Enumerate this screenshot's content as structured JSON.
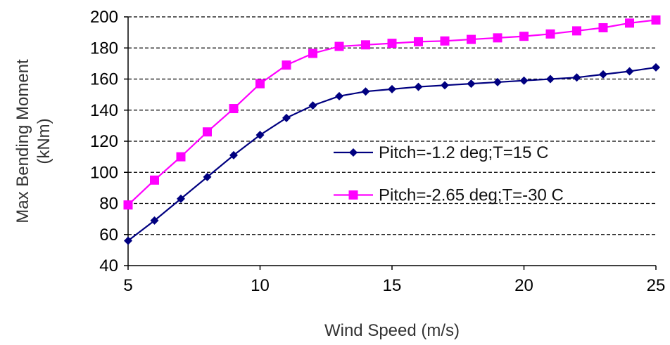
{
  "chart_data": {
    "type": "line",
    "xlabel": "Wind Speed (m/s)",
    "ylabel_lines": [
      "Max Bending Moment",
      "(kNm)"
    ],
    "xlim": [
      5,
      25
    ],
    "ylim": [
      40,
      200
    ],
    "xticks": [
      5,
      10,
      15,
      20,
      25
    ],
    "yticks": [
      40,
      60,
      80,
      100,
      120,
      140,
      160,
      180,
      200
    ],
    "grid": "horizontal-dashed",
    "legend_position": "center-right",
    "x": [
      5,
      6,
      7,
      8,
      9,
      10,
      11,
      12,
      13,
      14,
      15,
      16,
      17,
      18,
      19,
      20,
      21,
      22,
      23,
      24,
      25
    ],
    "series": [
      {
        "name": "Pitch=-1.2 deg;T=15 C",
        "color": "#000080",
        "marker": "diamond",
        "values": [
          56,
          69,
          83,
          97,
          111,
          124,
          135,
          143,
          149,
          152,
          153.5,
          155,
          156,
          157,
          158,
          159,
          160,
          161,
          163,
          165,
          167.5
        ]
      },
      {
        "name": "Pitch=-2.65 deg;T=-30 C",
        "color": "#ff00ff",
        "marker": "square",
        "values": [
          79,
          95,
          110,
          126,
          141,
          157,
          169,
          176.5,
          181,
          182,
          183,
          184,
          184.5,
          185.5,
          186.5,
          187.5,
          189,
          191,
          193,
          196,
          198
        ]
      }
    ]
  }
}
